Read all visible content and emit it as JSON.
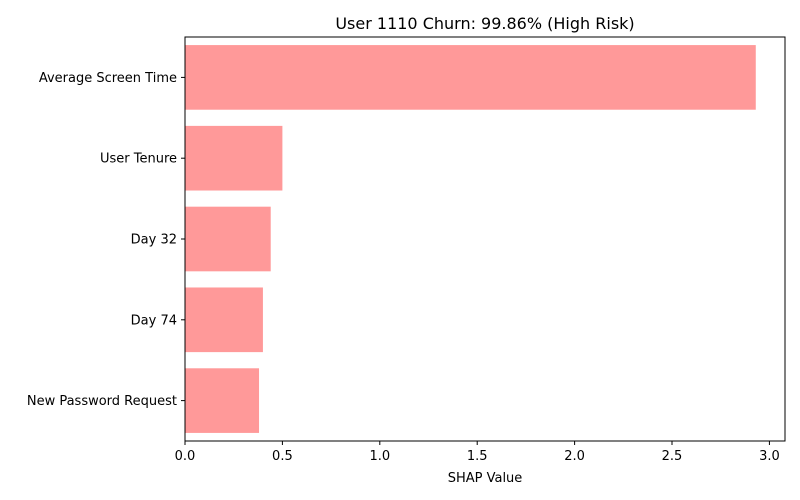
{
  "chart_data": {
    "type": "bar",
    "orientation": "horizontal",
    "title": "User 1110 Churn: 99.86% (High Risk)",
    "xlabel": "SHAP Value",
    "ylabel": "",
    "categories": [
      "Average Screen Time",
      "User Tenure",
      "Day 32",
      "Day 74",
      "New Password Request"
    ],
    "values": [
      2.93,
      0.5,
      0.44,
      0.4,
      0.38
    ],
    "xlim": [
      0,
      3.08
    ],
    "xticks": [
      "0.0",
      "0.5",
      "1.0",
      "1.5",
      "2.0",
      "2.5",
      "3.0"
    ],
    "bar_color": "#ff9999",
    "grid": false,
    "legend": "none"
  }
}
